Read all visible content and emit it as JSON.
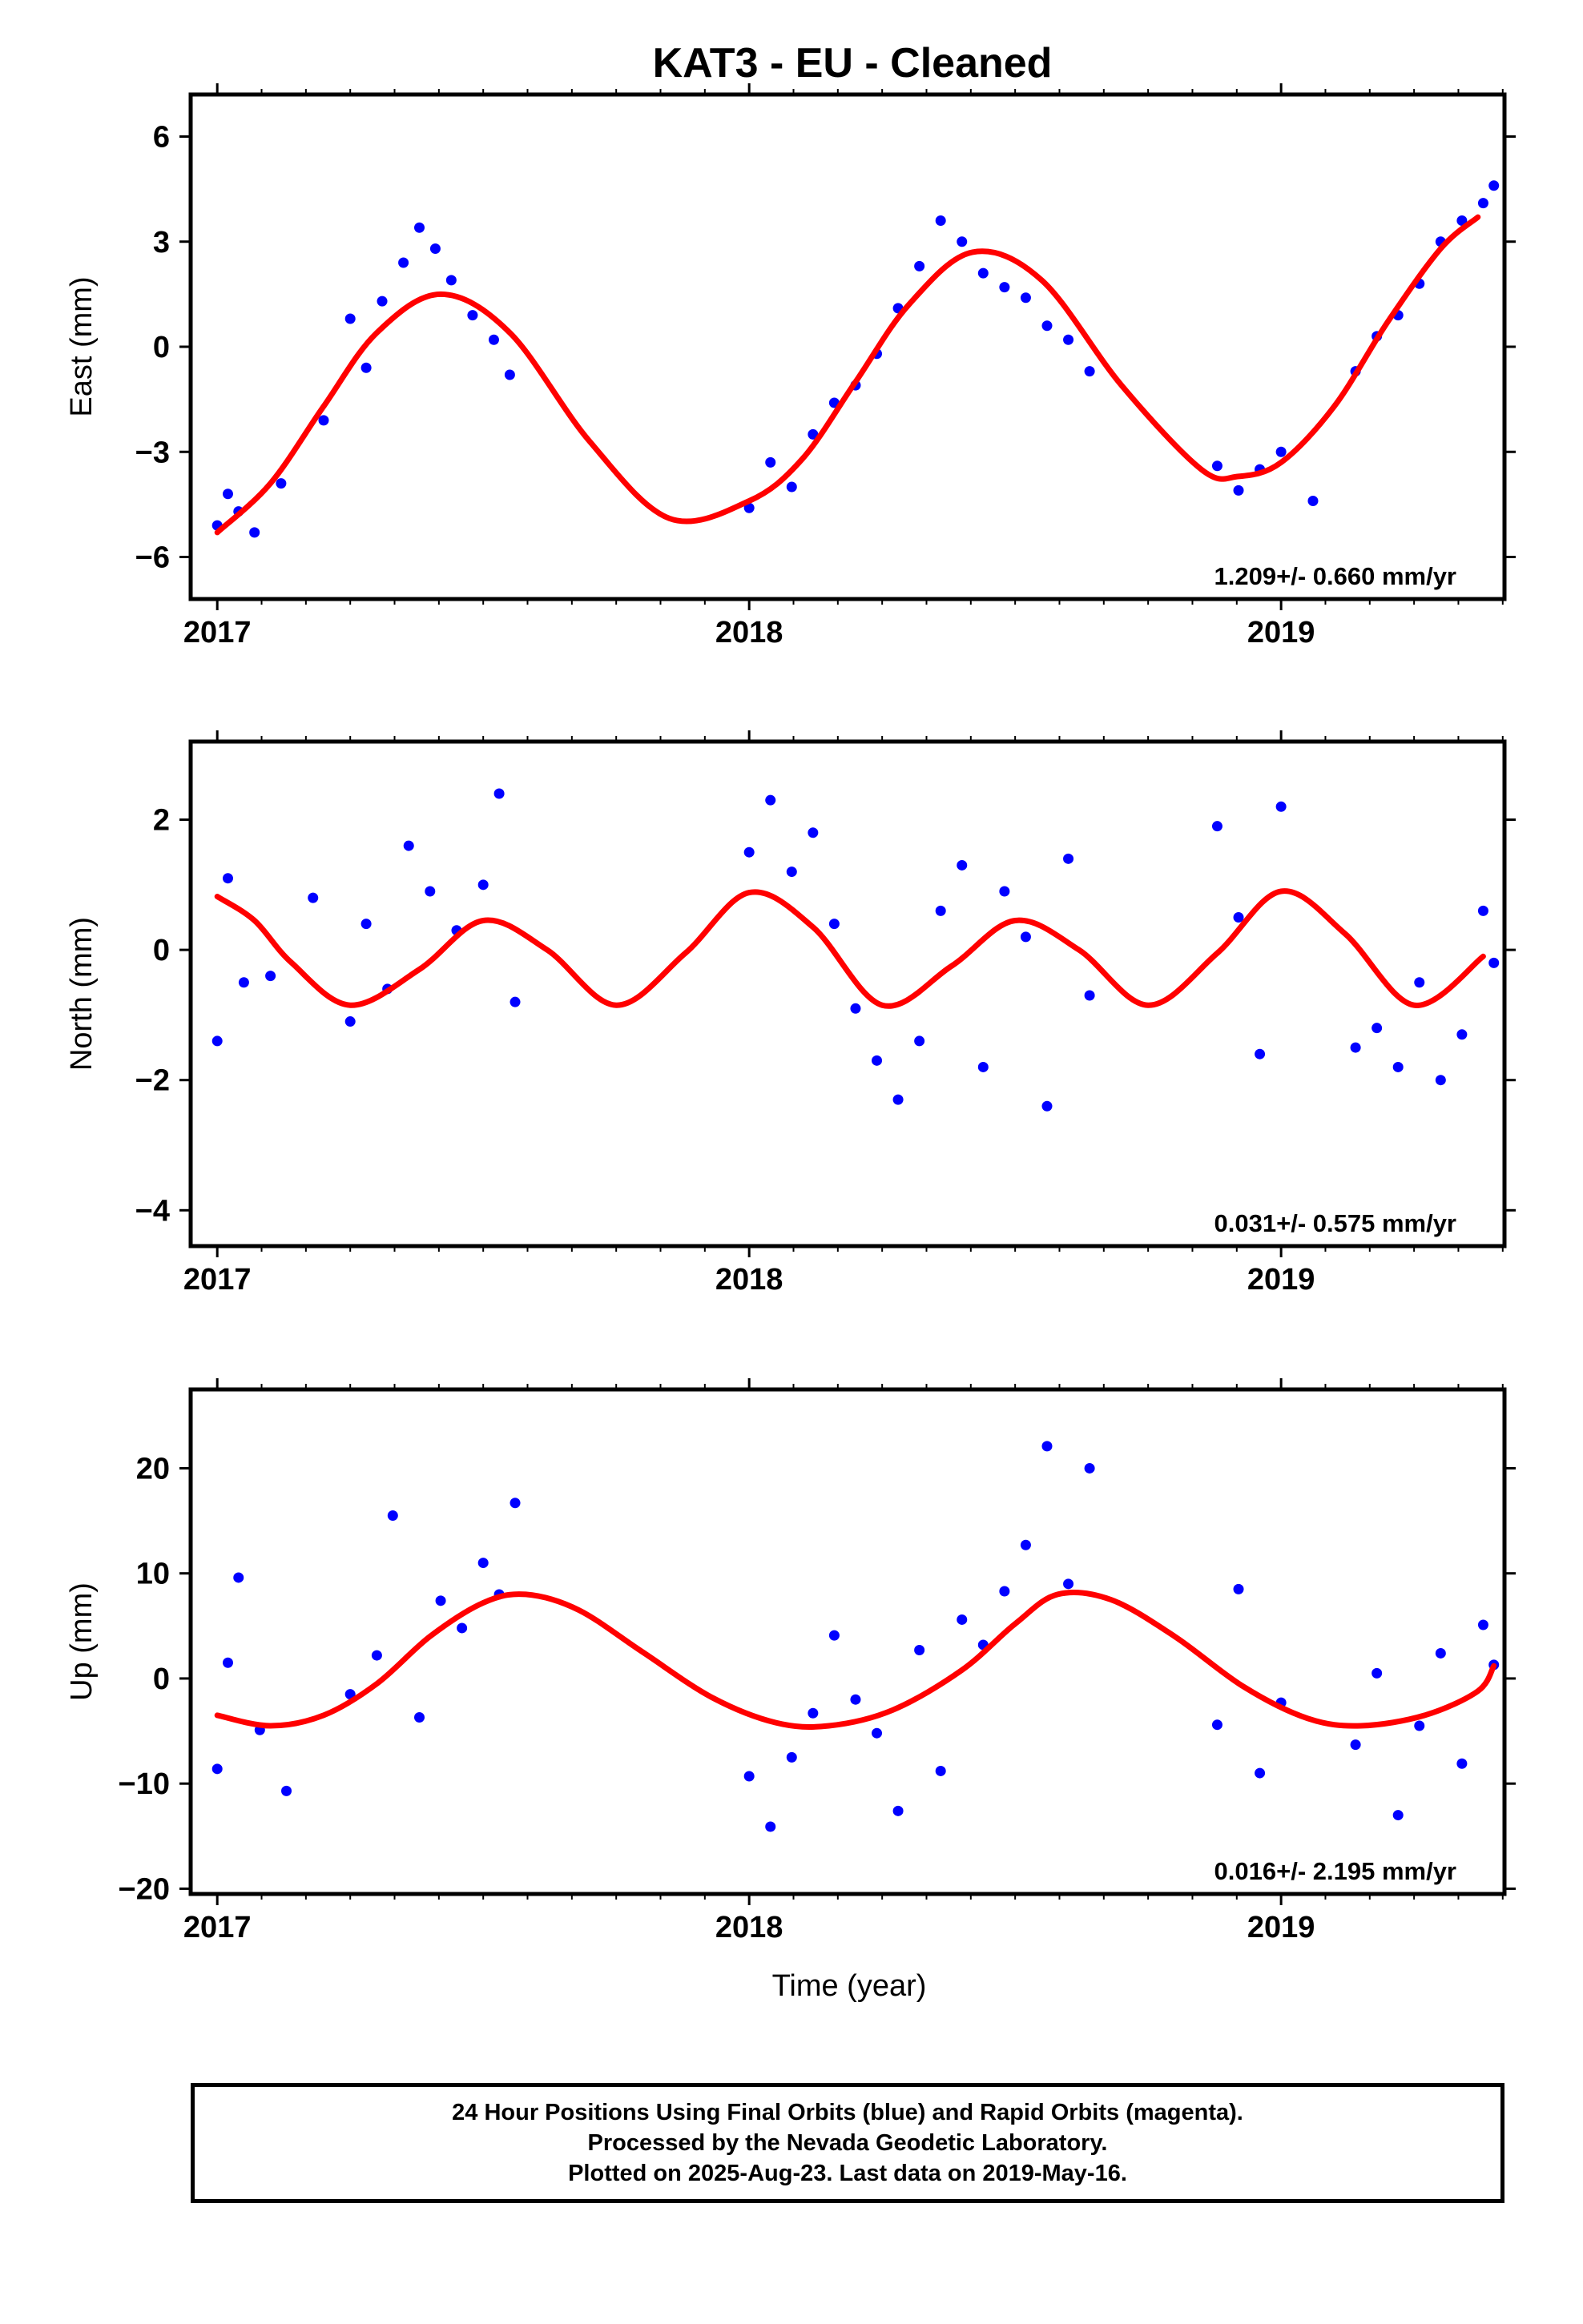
{
  "title": "KAT3  - EU - Cleaned",
  "xlabel": "Time (year)",
  "footer": {
    "line1": "24 Hour Positions Using Final Orbits (blue) and Rapid Orbits (magenta).",
    "line2": "Processed by the Nevada Geodetic Laboratory.",
    "line3": "Plotted on 2025-Aug-23. Last data on 2019-May-16."
  },
  "colors": {
    "points": "#0000ff",
    "fit": "#ff0000",
    "axes": "#000000"
  },
  "chart_data": [
    {
      "type": "scatter",
      "ylabel": "East (mm)",
      "rate_label": "1.209+/- 0.660 mm/yr",
      "xlim": [
        2016.95,
        2019.42
      ],
      "ylim": [
        -7.2,
        7.2
      ],
      "x_ticks": [
        2017,
        2018,
        2019
      ],
      "y_ticks": [
        -6,
        -3,
        0,
        3,
        6
      ],
      "grid": false,
      "series": [
        {
          "role": "data",
          "x": [
            2017.0,
            2017.02,
            2017.04,
            2017.07,
            2017.12,
            2017.2,
            2017.25,
            2017.28,
            2017.31,
            2017.35,
            2017.38,
            2017.41,
            2017.44,
            2017.48,
            2017.52,
            2017.55,
            2018.0,
            2018.04,
            2018.08,
            2018.12,
            2018.16,
            2018.2,
            2018.24,
            2018.28,
            2018.32,
            2018.36,
            2018.4,
            2018.44,
            2018.48,
            2018.52,
            2018.56,
            2018.6,
            2018.64,
            2018.88,
            2018.92,
            2018.96,
            2019.0,
            2019.06,
            2019.14,
            2019.18,
            2019.22,
            2019.26,
            2019.3,
            2019.34,
            2019.38,
            2019.4
          ],
          "y": [
            -5.1,
            -4.2,
            -4.7,
            -5.3,
            -3.9,
            -2.1,
            0.8,
            -0.6,
            1.3,
            2.4,
            3.4,
            2.8,
            1.9,
            0.9,
            0.2,
            -0.8,
            -4.6,
            -3.3,
            -4.0,
            -2.5,
            -1.6,
            -1.1,
            -0.2,
            1.1,
            2.3,
            3.6,
            3.0,
            2.1,
            1.7,
            1.4,
            0.6,
            0.2,
            -0.7,
            -3.4,
            -4.1,
            -3.5,
            -3.0,
            -4.4,
            -0.7,
            0.3,
            0.9,
            1.8,
            3.0,
            3.6,
            4.1,
            4.6
          ]
        },
        {
          "role": "fit",
          "x": [
            2017.0,
            2017.1,
            2017.2,
            2017.3,
            2017.42,
            2017.55,
            2017.7,
            2017.85,
            2018.0,
            2018.1,
            2018.2,
            2018.3,
            2018.42,
            2018.55,
            2018.7,
            2018.85,
            2018.92,
            2019.0,
            2019.1,
            2019.2,
            2019.3,
            2019.37
          ],
          "y": [
            -5.3,
            -3.9,
            -1.7,
            0.4,
            1.5,
            0.4,
            -2.7,
            -4.9,
            -4.4,
            -3.2,
            -1.0,
            1.2,
            2.7,
            1.9,
            -1.1,
            -3.5,
            -3.7,
            -3.3,
            -1.7,
            0.7,
            2.8,
            3.7
          ]
        }
      ]
    },
    {
      "type": "scatter",
      "ylabel": "North (mm)",
      "rate_label": "0.031+/- 0.575 mm/yr",
      "xlim": [
        2016.95,
        2019.42
      ],
      "ylim": [
        -4.55,
        3.2
      ],
      "x_ticks": [
        2017,
        2018,
        2019
      ],
      "y_ticks": [
        -4,
        -2,
        0,
        2
      ],
      "grid": false,
      "series": [
        {
          "role": "data",
          "x": [
            2017.0,
            2017.02,
            2017.05,
            2017.1,
            2017.18,
            2017.25,
            2017.28,
            2017.32,
            2017.36,
            2017.4,
            2017.45,
            2017.5,
            2017.53,
            2017.56,
            2018.0,
            2018.04,
            2018.08,
            2018.12,
            2018.16,
            2018.2,
            2018.24,
            2018.28,
            2018.32,
            2018.36,
            2018.4,
            2018.44,
            2018.48,
            2018.52,
            2018.56,
            2018.6,
            2018.64,
            2018.88,
            2018.92,
            2018.96,
            2019.0,
            2019.14,
            2019.18,
            2019.22,
            2019.26,
            2019.3,
            2019.34,
            2019.38,
            2019.4
          ],
          "y": [
            -1.4,
            1.1,
            -0.5,
            -0.4,
            0.8,
            -1.1,
            0.4,
            -0.6,
            1.6,
            0.9,
            0.3,
            1.0,
            2.4,
            -0.8,
            1.5,
            2.3,
            1.2,
            1.8,
            0.4,
            -0.9,
            -1.7,
            -2.3,
            -1.4,
            0.6,
            1.3,
            -1.8,
            0.9,
            0.2,
            -2.4,
            1.4,
            -0.7,
            1.9,
            0.5,
            -1.6,
            2.2,
            -1.5,
            -1.2,
            -1.8,
            -0.5,
            -2.0,
            -1.3,
            0.6,
            -0.2
          ]
        },
        {
          "role": "fit",
          "x": [
            2017.0,
            2017.07,
            2017.14,
            2017.25,
            2017.38,
            2017.5,
            2017.62,
            2017.75,
            2017.88,
            2018.0,
            2018.12,
            2018.25,
            2018.38,
            2018.5,
            2018.62,
            2018.75,
            2018.88,
            2019.0,
            2019.12,
            2019.25,
            2019.38
          ],
          "y": [
            0.82,
            0.45,
            -0.2,
            -0.85,
            -0.3,
            0.45,
            0.0,
            -0.85,
            -0.05,
            0.88,
            0.35,
            -0.85,
            -0.25,
            0.45,
            0.0,
            -0.85,
            -0.05,
            0.9,
            0.25,
            -0.85,
            -0.1
          ]
        }
      ]
    },
    {
      "type": "scatter",
      "ylabel": "Up (mm)",
      "rate_label": "0.016+/- 2.195 mm/yr",
      "xlim": [
        2016.95,
        2019.42
      ],
      "ylim": [
        -20.5,
        27.5
      ],
      "x_ticks": [
        2017,
        2018,
        2019
      ],
      "y_ticks": [
        -20,
        -10,
        0,
        10,
        20
      ],
      "grid": false,
      "series": [
        {
          "role": "data",
          "x": [
            2017.0,
            2017.02,
            2017.04,
            2017.08,
            2017.13,
            2017.25,
            2017.3,
            2017.33,
            2017.38,
            2017.42,
            2017.46,
            2017.5,
            2017.53,
            2017.56,
            2018.0,
            2018.04,
            2018.08,
            2018.12,
            2018.16,
            2018.2,
            2018.24,
            2018.28,
            2018.32,
            2018.36,
            2018.4,
            2018.44,
            2018.48,
            2018.52,
            2018.56,
            2018.6,
            2018.64,
            2018.88,
            2018.92,
            2018.96,
            2019.0,
            2019.14,
            2019.18,
            2019.22,
            2019.26,
            2019.3,
            2019.34,
            2019.38,
            2019.4
          ],
          "y": [
            -8.6,
            1.5,
            9.6,
            -4.9,
            -10.7,
            -1.5,
            2.2,
            15.5,
            -3.7,
            7.4,
            4.8,
            11.0,
            8.0,
            16.7,
            -9.3,
            -14.1,
            -7.5,
            -3.3,
            4.1,
            -2.0,
            -5.2,
            -12.6,
            2.7,
            -8.8,
            5.6,
            3.2,
            8.3,
            12.7,
            22.1,
            9.0,
            20.0,
            -4.4,
            8.5,
            -9.0,
            -2.3,
            -6.3,
            0.5,
            -13.0,
            -4.5,
            2.4,
            -8.1,
            5.1,
            1.3
          ]
        },
        {
          "role": "fit",
          "x": [
            2017.0,
            2017.1,
            2017.2,
            2017.3,
            2017.4,
            2017.5,
            2017.58,
            2017.68,
            2017.8,
            2017.93,
            2018.05,
            2018.15,
            2018.27,
            2018.4,
            2018.5,
            2018.58,
            2018.68,
            2018.8,
            2018.93,
            2019.05,
            2019.15,
            2019.27,
            2019.37,
            2019.4
          ],
          "y": [
            -3.5,
            -4.5,
            -3.5,
            -0.5,
            4.0,
            7.2,
            8.0,
            6.5,
            2.5,
            -1.8,
            -4.2,
            -4.5,
            -3.0,
            0.8,
            5.2,
            8.0,
            7.5,
            4.0,
            -0.8,
            -3.8,
            -4.5,
            -3.5,
            -1.2,
            1.2
          ]
        }
      ]
    }
  ]
}
